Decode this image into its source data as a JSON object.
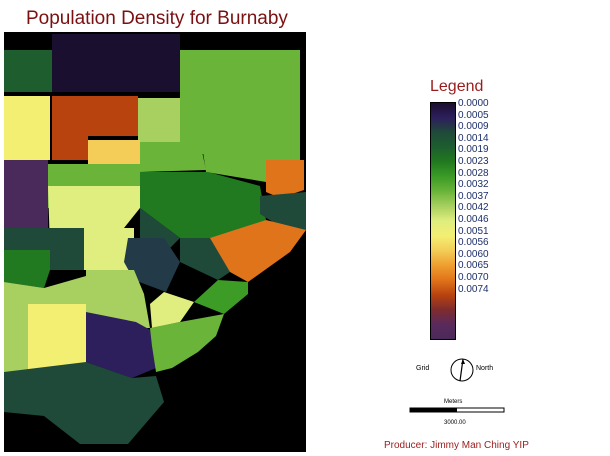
{
  "title": "Population Density for Burnaby",
  "legend": {
    "title": "Legend",
    "labels": [
      "0.0000",
      "0.0005",
      "0.0009",
      "0.0014",
      "0.0019",
      "0.0023",
      "0.0028",
      "0.0032",
      "0.0037",
      "0.0042",
      "0.0046",
      "0.0051",
      "0.0056",
      "0.0060",
      "0.0065",
      "0.0070",
      "0.0074"
    ],
    "colors": [
      "#1a0f2e",
      "#2d1f5c",
      "#1f4a3a",
      "#1e5e2e",
      "#217a1f",
      "#3c9c26",
      "#6ab43a",
      "#a8d060",
      "#dfee7e",
      "#f3ef72",
      "#f3cd57",
      "#ef9e30",
      "#e0741a",
      "#b9430e",
      "#7e2b2e",
      "#5a2a5c",
      "#4a2a5a"
    ]
  },
  "north_arrow": {
    "left_label": "Grid",
    "right_label": "North"
  },
  "scale_bar": {
    "unit": "Meters",
    "value": "3000.00"
  },
  "producer": "Producer: Jimmy Man Ching YIP"
}
